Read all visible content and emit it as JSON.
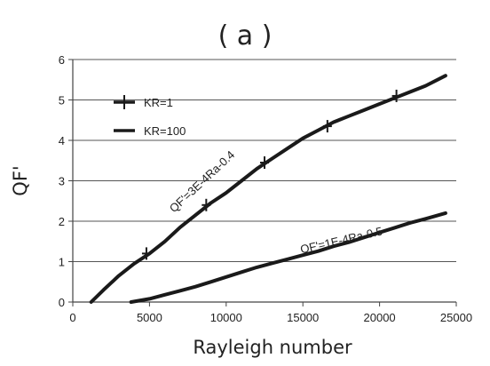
{
  "chart_data": {
    "type": "line",
    "panel_label": "( a )",
    "xlabel": "Rayleigh number",
    "ylabel": "QF'",
    "xlim": [
      0,
      25000
    ],
    "ylim": [
      0,
      6
    ],
    "x_ticks": [
      "0",
      "5000",
      "10000",
      "15000",
      "20000",
      "25000"
    ],
    "y_ticks": [
      "0",
      "1",
      "2",
      "3",
      "4",
      "5",
      "6"
    ],
    "grid": "horizontal",
    "legend_position": "top-left",
    "series": [
      {
        "name": "KR=1",
        "marker": "plus",
        "x": [
          1200,
          2000,
          3000,
          4000,
          5000,
          6000,
          7000,
          8000,
          9000,
          10000,
          11000,
          12000,
          13000,
          14000,
          15000,
          16000,
          17000,
          18000,
          19000,
          20000,
          21000,
          22000,
          23000,
          24300
        ],
        "y": [
          0.0,
          0.3,
          0.65,
          0.95,
          1.2,
          1.5,
          1.85,
          2.15,
          2.45,
          2.7,
          3.0,
          3.3,
          3.55,
          3.8,
          4.05,
          4.25,
          4.45,
          4.6,
          4.75,
          4.9,
          5.05,
          5.2,
          5.35,
          5.6
        ],
        "marker_x": [
          4800,
          8700,
          12500,
          16600,
          21100
        ],
        "marker_y": [
          1.2,
          2.4,
          3.45,
          4.35,
          5.1
        ]
      },
      {
        "name": "KR=100",
        "marker": "none",
        "x": [
          3800,
          5000,
          6000,
          7000,
          8000,
          9000,
          10000,
          11000,
          12000,
          13000,
          14000,
          15000,
          16000,
          17000,
          18000,
          19000,
          20000,
          21000,
          22000,
          23000,
          24300
        ],
        "y": [
          0.0,
          0.08,
          0.18,
          0.28,
          0.38,
          0.5,
          0.62,
          0.74,
          0.86,
          0.96,
          1.06,
          1.16,
          1.26,
          1.38,
          1.48,
          1.6,
          1.72,
          1.84,
          1.96,
          2.06,
          2.2
        ]
      }
    ],
    "annotations": [
      {
        "text": "QF'=3E-4Ra-0.4",
        "x": 6600,
        "y": 2.2,
        "angle_deg": -43
      },
      {
        "text": "QF'=1E-4Ra-0.5",
        "x": 14900,
        "y": 1.2,
        "angle_deg": -13
      }
    ],
    "legend": {
      "entries": [
        {
          "label": "KR=1",
          "marker": "plus"
        },
        {
          "label": "KR=100",
          "marker": "none"
        }
      ]
    }
  }
}
